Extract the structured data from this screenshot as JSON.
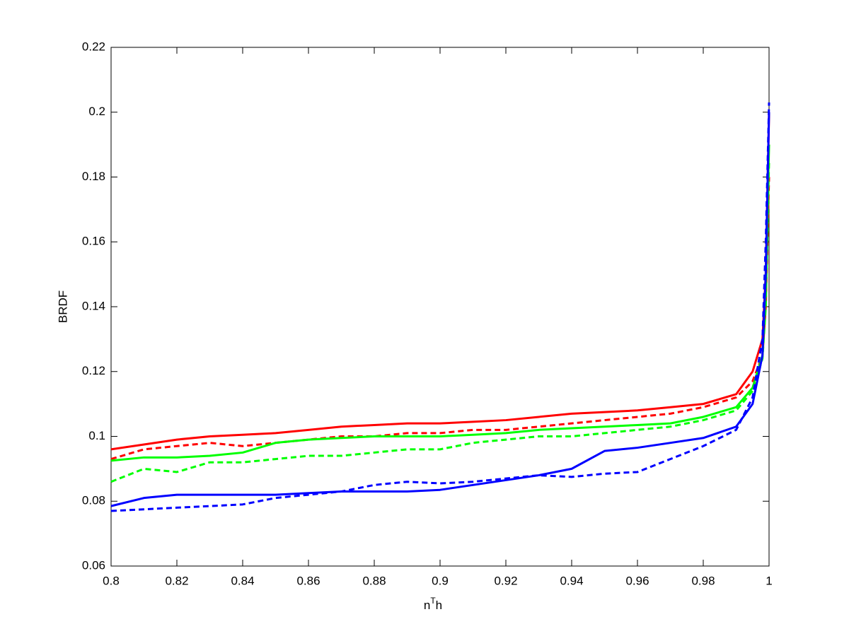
{
  "chart_data": {
    "type": "line",
    "xlabel": [
      "n",
      "T",
      "h"
    ],
    "ylabel": "BRDF",
    "x": [
      0.8,
      0.81,
      0.82,
      0.83,
      0.84,
      0.85,
      0.86,
      0.87,
      0.88,
      0.89,
      0.9,
      0.91,
      0.92,
      0.93,
      0.94,
      0.95,
      0.96,
      0.97,
      0.98,
      0.99,
      0.995,
      0.998,
      0.999,
      1.0
    ],
    "series": [
      {
        "color": "#ff0000",
        "style": "solid",
        "values": [
          0.096,
          0.0975,
          0.099,
          0.1,
          0.1005,
          0.101,
          0.102,
          0.103,
          0.1035,
          0.104,
          0.104,
          0.1045,
          0.105,
          0.106,
          0.107,
          0.1075,
          0.108,
          0.109,
          0.11,
          0.113,
          0.12,
          0.13,
          0.15,
          0.2
        ]
      },
      {
        "color": "#ff0000",
        "style": "dashed",
        "values": [
          0.093,
          0.096,
          0.097,
          0.098,
          0.097,
          0.098,
          0.099,
          0.1,
          0.1,
          0.101,
          0.101,
          0.102,
          0.102,
          0.103,
          0.104,
          0.105,
          0.106,
          0.107,
          0.109,
          0.112,
          0.117,
          0.125,
          0.14,
          0.18
        ]
      },
      {
        "color": "#00ff00",
        "style": "solid",
        "values": [
          0.0925,
          0.0935,
          0.0935,
          0.094,
          0.095,
          0.098,
          0.099,
          0.0995,
          0.1,
          0.1,
          0.1,
          0.1005,
          0.101,
          0.102,
          0.1025,
          0.103,
          0.1035,
          0.104,
          0.106,
          0.109,
          0.115,
          0.125,
          0.145,
          0.19
        ]
      },
      {
        "color": "#00ff00",
        "style": "dashed",
        "values": [
          0.086,
          0.09,
          0.089,
          0.092,
          0.092,
          0.093,
          0.094,
          0.094,
          0.095,
          0.096,
          0.096,
          0.098,
          0.099,
          0.1,
          0.1,
          0.101,
          0.102,
          0.103,
          0.105,
          0.108,
          0.114,
          0.124,
          0.14,
          0.185
        ]
      },
      {
        "color": "#0000ff",
        "style": "solid",
        "values": [
          0.0785,
          0.081,
          0.082,
          0.082,
          0.082,
          0.082,
          0.0825,
          0.083,
          0.083,
          0.083,
          0.0835,
          0.085,
          0.0865,
          0.088,
          0.09,
          0.0955,
          0.0965,
          0.098,
          0.0995,
          0.103,
          0.11,
          0.125,
          0.15,
          0.2
        ]
      },
      {
        "color": "#0000ff",
        "style": "dashed",
        "values": [
          0.077,
          0.0775,
          0.078,
          0.0785,
          0.079,
          0.081,
          0.082,
          0.083,
          0.085,
          0.086,
          0.0855,
          0.086,
          0.087,
          0.088,
          0.0875,
          0.0885,
          0.089,
          0.093,
          0.097,
          0.102,
          0.112,
          0.13,
          0.16,
          0.203
        ]
      }
    ],
    "xlim": [
      0.8,
      1
    ],
    "xticks": [
      0.8,
      0.82,
      0.84,
      0.86,
      0.88,
      0.9,
      0.92,
      0.94,
      0.96,
      0.98,
      1
    ],
    "ylim": [
      0.06,
      0.22
    ],
    "yticks": [
      0.06,
      0.08,
      0.1,
      0.12,
      0.14,
      0.16,
      0.18,
      0.2,
      0.22
    ],
    "grid": false
  }
}
